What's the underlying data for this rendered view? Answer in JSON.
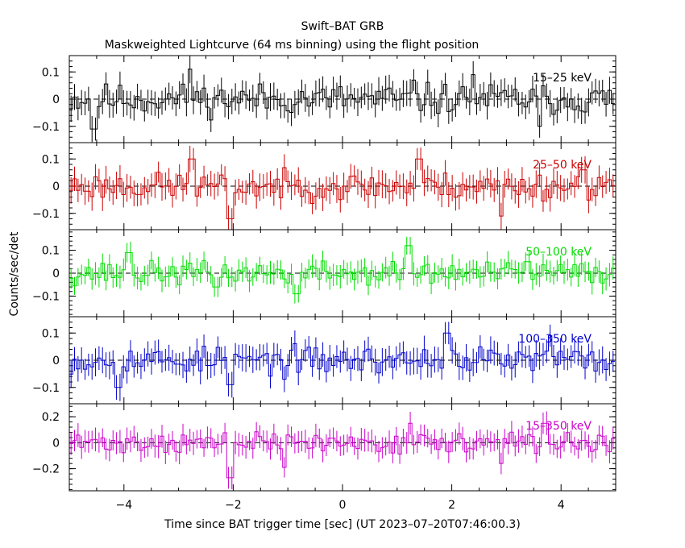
{
  "title": "Swift–BAT GRB",
  "subtitle": "Maskweighted Lightcurve (64 ms binning) using the flight position",
  "ylabel": "Counts/sec/det",
  "xlabel": "Time since BAT trigger time [sec] (UT 2023–07–20T07:46:00.3)",
  "chart_data": [
    {
      "type": "line",
      "panel": "15–25 keV",
      "color": "#000000",
      "xlim": [
        -5.0,
        5.0
      ],
      "ylim": [
        -0.16,
        0.16
      ],
      "yticks": [
        -0.1,
        0,
        0.1
      ],
      "yticklabels": [
        "−0.1",
        "0",
        "0.1"
      ],
      "xticks": [
        -4,
        -2,
        0,
        2,
        4
      ],
      "xticklabels": [],
      "amp": 0.04,
      "err": 0.045,
      "seed": 11,
      "features": [
        {
          "t": -4.55,
          "v": -0.11
        },
        {
          "t": -2.8,
          "v": 0.11
        },
        {
          "t": 1.3,
          "v": 0.07
        },
        {
          "t": 2.4,
          "v": 0.09
        },
        {
          "t": 3.6,
          "v": -0.1
        }
      ]
    },
    {
      "type": "line",
      "panel": "25–50 keV",
      "color": "#cc0000",
      "xlim": [
        -5.0,
        5.0
      ],
      "ylim": [
        -0.16,
        0.16
      ],
      "yticks": [
        -0.1,
        0,
        0.1
      ],
      "yticklabels": [
        "−0.1",
        "0",
        "0.1"
      ],
      "xticks": [
        -4,
        -2,
        0,
        2,
        4
      ],
      "xticklabels": [],
      "amp": 0.035,
      "err": 0.045,
      "seed": 23,
      "features": [
        {
          "t": -2.75,
          "v": 0.1
        },
        {
          "t": -2.05,
          "v": -0.12
        },
        {
          "t": 1.4,
          "v": 0.1
        },
        {
          "t": 2.9,
          "v": -0.11
        },
        {
          "t": 4.4,
          "v": 0.06
        }
      ]
    },
    {
      "type": "line",
      "panel": "50–100 keV",
      "color": "#00dd00",
      "xlim": [
        -5.0,
        5.0
      ],
      "ylim": [
        -0.19,
        0.19
      ],
      "yticks": [
        -0.1,
        0,
        0.1
      ],
      "yticklabels": [
        "−0.1",
        "0",
        "0.1"
      ],
      "xticks": [
        -4,
        -2,
        0,
        2,
        4
      ],
      "xticklabels": [],
      "amp": 0.035,
      "err": 0.045,
      "seed": 37,
      "features": [
        {
          "t": -3.9,
          "v": 0.09
        },
        {
          "t": -2.3,
          "v": -0.06
        },
        {
          "t": -0.85,
          "v": -0.09
        },
        {
          "t": 1.2,
          "v": 0.12
        },
        {
          "t": 3.4,
          "v": 0.05
        }
      ]
    },
    {
      "type": "line",
      "panel": "100–350 keV",
      "color": "#0000cc",
      "xlim": [
        -5.0,
        5.0
      ],
      "ylim": [
        -0.16,
        0.16
      ],
      "yticks": [
        -0.1,
        0,
        0.1
      ],
      "yticklabels": [
        "−0.1",
        "0",
        "0.1"
      ],
      "xticks": [
        -4,
        -2,
        0,
        2,
        4
      ],
      "xticklabels": [],
      "amp": 0.035,
      "err": 0.045,
      "seed": 53,
      "features": [
        {
          "t": -4.1,
          "v": -0.1
        },
        {
          "t": -2.05,
          "v": -0.09
        },
        {
          "t": -1.05,
          "v": -0.07
        },
        {
          "t": 1.9,
          "v": 0.1
        },
        {
          "t": 3.8,
          "v": 0.09
        }
      ]
    },
    {
      "type": "line",
      "panel": "15–350 keV",
      "color": "#cc00cc",
      "xlim": [
        -5.0,
        5.0
      ],
      "ylim": [
        -0.37,
        0.3
      ],
      "yticks": [
        -0.2,
        0,
        0.2
      ],
      "yticklabels": [
        "−0.2",
        "0",
        "0.2"
      ],
      "xticks": [
        -4,
        -2,
        0,
        2,
        4
      ],
      "xticklabels": [
        "−4",
        "−2",
        "0",
        "2",
        "4"
      ],
      "amp": 0.055,
      "err": 0.08,
      "seed": 71,
      "features": [
        {
          "t": -2.05,
          "v": -0.27
        },
        {
          "t": -1.05,
          "v": -0.19
        },
        {
          "t": 1.25,
          "v": 0.15
        },
        {
          "t": 2.9,
          "v": -0.16
        },
        {
          "t": 3.7,
          "v": 0.15
        }
      ]
    }
  ]
}
